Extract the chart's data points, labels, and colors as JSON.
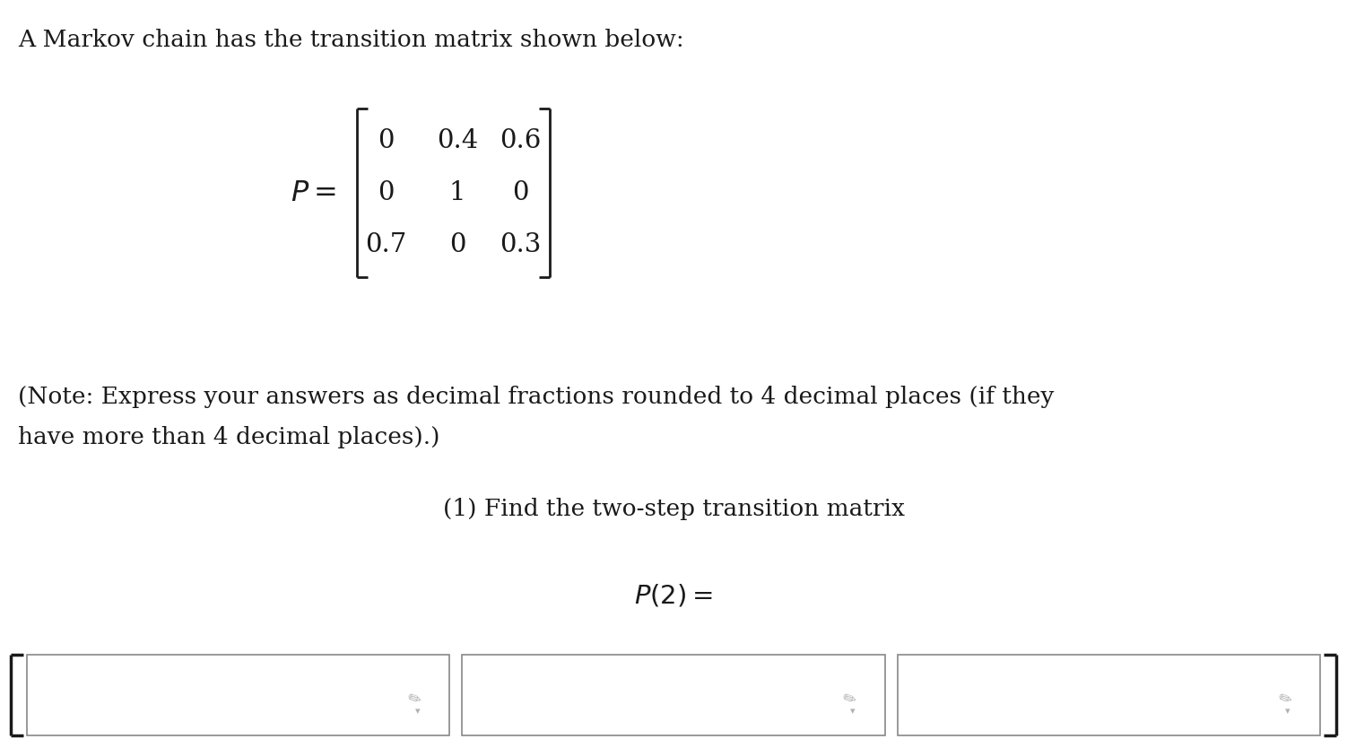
{
  "title_text": "A Markov chain has the transition matrix shown below:",
  "matrix": [
    [
      "0",
      "0.4",
      "0.6"
    ],
    [
      "0",
      "1",
      "0"
    ],
    [
      "0.7",
      "0",
      "0.3"
    ]
  ],
  "note_line1": "(Note: Express your answers as decimal fractions rounded to 4 decimal places (if they",
  "note_line2": "have more than 4 decimal places).)",
  "question_text": "(1) Find the two-step transition matrix",
  "p2_label": "P(2) =",
  "bg_color": "#ffffff",
  "text_color": "#1a1a1a",
  "font_size_title": 19,
  "font_size_matrix": 21,
  "font_size_note": 19,
  "font_size_question": 19,
  "font_size_p2": 20,
  "fig_width": 15.02,
  "fig_height": 8.24,
  "dpi": 100
}
